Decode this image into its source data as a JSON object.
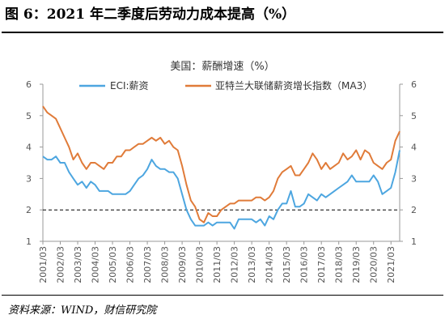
{
  "figure": {
    "title": "图 6：2021 年二季度后劳动力成本提高（%）",
    "source": "资料来源：WIND，财信研究院"
  },
  "colors": {
    "eci": "#4da6e0",
    "index": "#e07b39",
    "reference_line": "#000000",
    "axis": "#999999"
  },
  "chart_data": {
    "type": "line",
    "title": "美国：薪酬增速（%）",
    "xlabel": "",
    "ylabel": "",
    "ylim": [
      1,
      6
    ],
    "y_ticks": [
      1,
      2,
      3,
      4,
      5,
      6
    ],
    "y2_ticks": [
      1,
      2,
      3,
      4,
      5,
      6
    ],
    "x_range": [
      2001.0,
      2021.5
    ],
    "x_tick_labels": [
      "2001/03",
      "2002/03",
      "2003/03",
      "2004/03",
      "2005/03",
      "2006/03",
      "2007/03",
      "2008/03",
      "2009/03",
      "2010/03",
      "2011/03",
      "2012/03",
      "2013/03",
      "2014/03",
      "2015/03",
      "2016/03",
      "2017/03",
      "2018/03",
      "2019/03",
      "2020/03",
      "2021/03"
    ],
    "reference_line_y": 2,
    "legend_position": "top",
    "series": [
      {
        "name": "ECI:薪资",
        "color": "#4da6e0",
        "x": [
          2001.0,
          2001.25,
          2001.5,
          2001.75,
          2002.0,
          2002.25,
          2002.5,
          2002.75,
          2003.0,
          2003.25,
          2003.5,
          2003.75,
          2004.0,
          2004.25,
          2004.5,
          2004.75,
          2005.0,
          2005.25,
          2005.5,
          2005.75,
          2006.0,
          2006.25,
          2006.5,
          2006.75,
          2007.0,
          2007.25,
          2007.5,
          2007.75,
          2008.0,
          2008.25,
          2008.5,
          2008.75,
          2009.0,
          2009.25,
          2009.5,
          2009.75,
          2010.0,
          2010.25,
          2010.5,
          2010.75,
          2011.0,
          2011.25,
          2011.5,
          2011.75,
          2012.0,
          2012.25,
          2012.5,
          2012.75,
          2013.0,
          2013.25,
          2013.5,
          2013.75,
          2014.0,
          2014.25,
          2014.5,
          2014.75,
          2015.0,
          2015.25,
          2015.5,
          2015.75,
          2016.0,
          2016.25,
          2016.5,
          2016.75,
          2017.0,
          2017.25,
          2017.5,
          2017.75,
          2018.0,
          2018.25,
          2018.5,
          2018.75,
          2019.0,
          2019.25,
          2019.5,
          2019.75,
          2020.0,
          2020.25,
          2020.5,
          2020.75,
          2021.0,
          2021.25,
          2021.5
        ],
        "values": [
          3.7,
          3.6,
          3.6,
          3.7,
          3.5,
          3.5,
          3.2,
          3.0,
          2.8,
          2.9,
          2.7,
          2.9,
          2.8,
          2.6,
          2.6,
          2.6,
          2.5,
          2.5,
          2.5,
          2.5,
          2.6,
          2.8,
          3.0,
          3.1,
          3.3,
          3.6,
          3.4,
          3.3,
          3.3,
          3.2,
          3.2,
          3.0,
          2.5,
          2.0,
          1.7,
          1.5,
          1.5,
          1.5,
          1.6,
          1.5,
          1.6,
          1.6,
          1.6,
          1.6,
          1.4,
          1.7,
          1.7,
          1.7,
          1.7,
          1.6,
          1.7,
          1.5,
          1.8,
          1.7,
          2.0,
          2.2,
          2.2,
          2.6,
          2.1,
          2.1,
          2.2,
          2.5,
          2.4,
          2.3,
          2.5,
          2.4,
          2.5,
          2.6,
          2.7,
          2.8,
          2.9,
          3.1,
          2.9,
          2.9,
          2.9,
          2.9,
          3.1,
          2.9,
          2.5,
          2.6,
          2.7,
          3.2,
          3.9
        ]
      },
      {
        "name": "亚特兰大联储薪资增长指数（MA3）",
        "color": "#e07b39",
        "x": [
          2001.0,
          2001.25,
          2001.5,
          2001.75,
          2002.0,
          2002.25,
          2002.5,
          2002.75,
          2003.0,
          2003.25,
          2003.5,
          2003.75,
          2004.0,
          2004.25,
          2004.5,
          2004.75,
          2005.0,
          2005.25,
          2005.5,
          2005.75,
          2006.0,
          2006.25,
          2006.5,
          2006.75,
          2007.0,
          2007.25,
          2007.5,
          2007.75,
          2008.0,
          2008.25,
          2008.5,
          2008.75,
          2009.0,
          2009.25,
          2009.5,
          2009.75,
          2010.0,
          2010.25,
          2010.5,
          2010.75,
          2011.0,
          2011.25,
          2011.5,
          2011.75,
          2012.0,
          2012.25,
          2012.5,
          2012.75,
          2013.0,
          2013.25,
          2013.5,
          2013.75,
          2014.0,
          2014.25,
          2014.5,
          2014.75,
          2015.0,
          2015.25,
          2015.5,
          2015.75,
          2016.0,
          2016.25,
          2016.5,
          2016.75,
          2017.0,
          2017.25,
          2017.5,
          2017.75,
          2018.0,
          2018.25,
          2018.5,
          2018.75,
          2019.0,
          2019.25,
          2019.5,
          2019.75,
          2020.0,
          2020.25,
          2020.5,
          2020.75,
          2021.0,
          2021.25,
          2021.5
        ],
        "values": [
          5.3,
          5.1,
          5.0,
          4.9,
          4.6,
          4.3,
          4.0,
          3.6,
          3.8,
          3.5,
          3.3,
          3.5,
          3.5,
          3.4,
          3.3,
          3.5,
          3.5,
          3.7,
          3.7,
          3.9,
          3.9,
          4.0,
          4.1,
          4.1,
          4.2,
          4.3,
          4.2,
          4.3,
          4.1,
          4.2,
          4.0,
          3.9,
          3.4,
          2.8,
          2.3,
          2.1,
          1.7,
          1.6,
          1.9,
          1.8,
          1.8,
          2.0,
          2.1,
          2.2,
          2.2,
          2.3,
          2.3,
          2.3,
          2.3,
          2.4,
          2.4,
          2.3,
          2.4,
          2.6,
          3.0,
          3.2,
          3.3,
          3.4,
          3.1,
          3.1,
          3.3,
          3.5,
          3.8,
          3.6,
          3.3,
          3.5,
          3.3,
          3.4,
          3.5,
          3.8,
          3.6,
          3.7,
          3.9,
          3.6,
          3.9,
          3.8,
          3.5,
          3.4,
          3.3,
          3.5,
          3.6,
          4.2,
          4.5
        ]
      }
    ]
  }
}
